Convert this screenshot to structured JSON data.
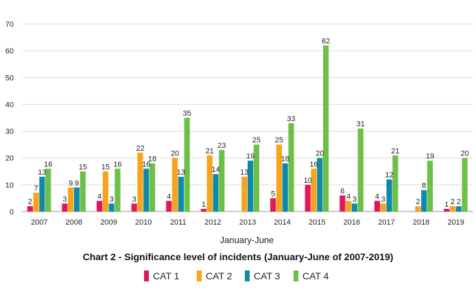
{
  "chart_data": {
    "type": "bar",
    "title": "Chart 2 - Significance level of incidents (January-June of 2007-2019)",
    "xlabel": "January-June",
    "ylabel": "",
    "ylim": [
      0,
      70
    ],
    "yticks": [
      0,
      10,
      20,
      30,
      40,
      50,
      60,
      70
    ],
    "grid": true,
    "legend_position": "bottom",
    "categories": [
      "2007",
      "2008",
      "2009",
      "2010",
      "2011",
      "2012",
      "2013",
      "2014",
      "2015",
      "2016",
      "2017",
      "2018",
      "2019"
    ],
    "series": [
      {
        "name": "CAT 1",
        "color": "#e4165a",
        "values": [
          2,
          3,
          4,
          3,
          4,
          1,
          null,
          5,
          10,
          6,
          4,
          null,
          1
        ]
      },
      {
        "name": "CAT 2",
        "color": "#f9a31b",
        "values": [
          7,
          9,
          15,
          22,
          20,
          21,
          13,
          25,
          16,
          4,
          3,
          2,
          2
        ]
      },
      {
        "name": "CAT 3",
        "color": "#0f8aa6",
        "values": [
          13,
          9,
          3,
          16,
          13,
          14,
          19,
          18,
          20,
          3,
          12,
          8,
          2
        ]
      },
      {
        "name": "CAT 4",
        "color": "#6cc04a",
        "values": [
          16,
          15,
          16,
          18,
          35,
          23,
          25,
          33,
          62,
          31,
          21,
          19,
          20
        ]
      }
    ]
  }
}
